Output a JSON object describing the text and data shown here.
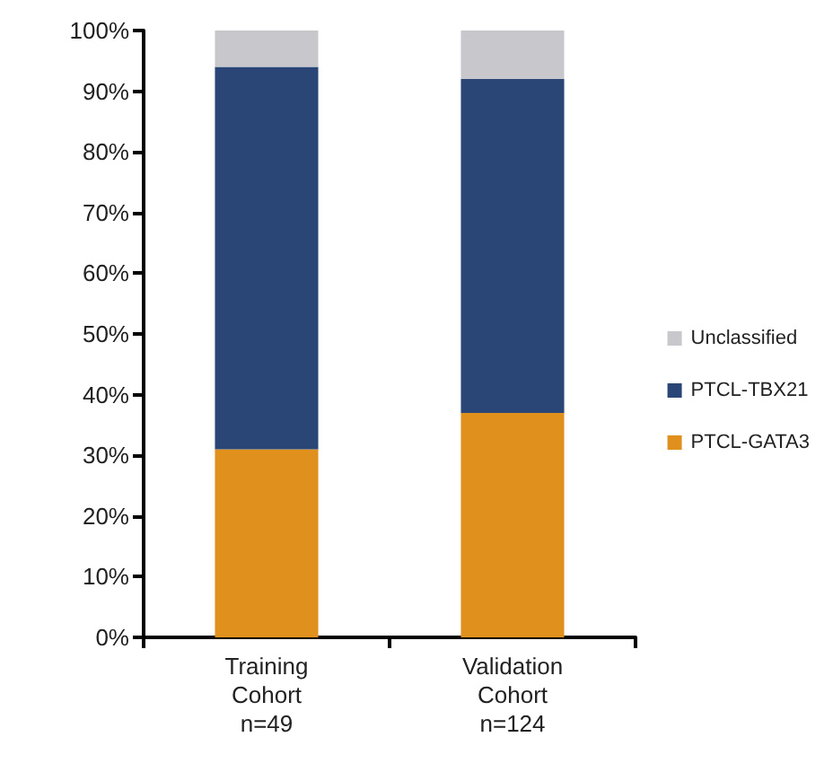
{
  "chart_data": {
    "type": "bar",
    "stacked": true,
    "categories": [
      "Training\nCohort\nn=49",
      "Validation\nCohort\nn=124"
    ],
    "series": [
      {
        "name": "PTCL-GATA3",
        "color": "#e0901c",
        "values": [
          31,
          37
        ]
      },
      {
        "name": "PTCL-TBX21",
        "color": "#2a4677",
        "values": [
          63,
          55
        ]
      },
      {
        "name": "Unclassified",
        "color": "#c8c8cc",
        "values": [
          6,
          8
        ]
      }
    ],
    "ylim": [
      0,
      100
    ],
    "yticks": [
      {
        "value": 0,
        "label": "0%"
      },
      {
        "value": 10,
        "label": "10%"
      },
      {
        "value": 20,
        "label": "20%"
      },
      {
        "value": 30,
        "label": "30%"
      },
      {
        "value": 40,
        "label": "40%"
      },
      {
        "value": 50,
        "label": "50%"
      },
      {
        "value": 60,
        "label": "60%"
      },
      {
        "value": 70,
        "label": "70%"
      },
      {
        "value": 80,
        "label": "80%"
      },
      {
        "value": 90,
        "label": "90%"
      },
      {
        "value": 100,
        "label": "100%"
      }
    ],
    "grid": false,
    "legend": "right"
  }
}
